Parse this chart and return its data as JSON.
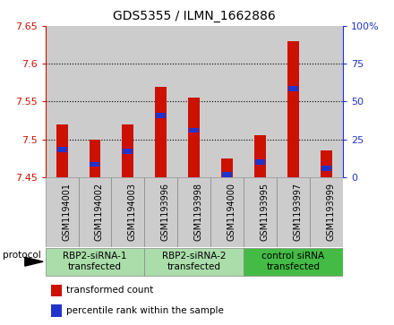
{
  "title": "GDS5355 / ILMN_1662886",
  "categories": [
    "GSM1194001",
    "GSM1194002",
    "GSM1194003",
    "GSM1193996",
    "GSM1193998",
    "GSM1194000",
    "GSM1193995",
    "GSM1193997",
    "GSM1193999"
  ],
  "red_values": [
    7.52,
    7.5,
    7.52,
    7.57,
    7.555,
    7.475,
    7.505,
    7.63,
    7.485
  ],
  "blue_values": [
    7.487,
    7.467,
    7.484,
    7.532,
    7.512,
    7.453,
    7.47,
    7.567,
    7.462
  ],
  "ymin": 7.45,
  "ymax": 7.65,
  "y_ticks": [
    7.45,
    7.5,
    7.55,
    7.6,
    7.65
  ],
  "y_right_ticks": [
    0,
    25,
    50,
    75,
    100
  ],
  "y_right_labels": [
    "0",
    "25",
    "50",
    "75",
    "100%"
  ],
  "groups": [
    {
      "label": "RBP2-siRNA-1\ntransfected",
      "start": 0,
      "end": 3,
      "color": "#aaddaa"
    },
    {
      "label": "RBP2-siRNA-2\ntransfected",
      "start": 3,
      "end": 6,
      "color": "#aaddaa"
    },
    {
      "label": "control siRNA\ntransfected",
      "start": 6,
      "end": 9,
      "color": "#44bb44"
    }
  ],
  "protocol_label": "protocol",
  "bar_width": 0.35,
  "red_color": "#cc1100",
  "blue_color": "#2233cc",
  "bg_color": "#ffffff",
  "cell_bg": "#cccccc",
  "left_axis_color": "#cc1100",
  "right_axis_color": "#2233cc",
  "grid_color": "#000000"
}
